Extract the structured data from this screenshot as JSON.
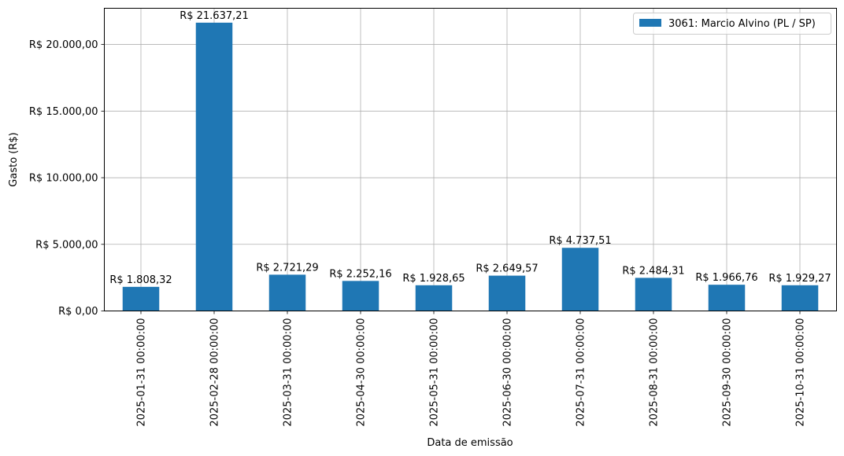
{
  "chart_data": {
    "type": "bar",
    "xlabel": "Data de emissão",
    "ylabel": "Gasto (R$)",
    "categories": [
      "2025-01-31 00:00:00",
      "2025-02-28 00:00:00",
      "2025-03-31 00:00:00",
      "2025-04-30 00:00:00",
      "2025-05-31 00:00:00",
      "2025-06-30 00:00:00",
      "2025-07-31 00:00:00",
      "2025-08-31 00:00:00",
      "2025-09-30 00:00:00",
      "2025-10-31 00:00:00"
    ],
    "series": [
      {
        "name": "3061: Marcio Alvino (PL / SP)",
        "color": "#1f77b4",
        "values": [
          1808.32,
          21637.21,
          2721.29,
          2252.16,
          1928.65,
          2649.57,
          4737.51,
          2484.31,
          1966.76,
          1929.27
        ]
      }
    ],
    "data_labels": [
      "R$ 1.808,32",
      "R$ 21.637,21",
      "R$ 2.721,29",
      "R$ 2.252,16",
      "R$ 1.928,65",
      "R$ 2.649,57",
      "R$ 4.737,51",
      "R$ 2.484,31",
      "R$ 1.966,76",
      "R$ 1.929,27"
    ],
    "yticks": [
      0,
      5000,
      10000,
      15000,
      20000
    ],
    "ytick_labels": [
      "R$ 0,00",
      "R$ 5.000,00",
      "R$ 10.000,00",
      "R$ 15.000,00",
      "R$ 20.000,00"
    ],
    "ylim": [
      0,
      22719.07
    ],
    "grid": true,
    "legend_position": "top-right"
  }
}
